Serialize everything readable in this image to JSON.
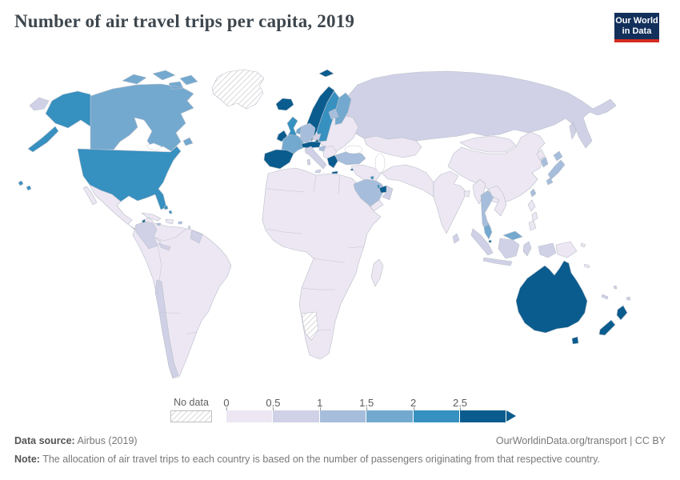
{
  "header": {
    "title": "Number of air travel trips per capita, 2019",
    "logo": {
      "line1": "Our World",
      "line2": "in Data",
      "navy": "#12305b",
      "red": "#d42b21"
    }
  },
  "legend": {
    "no_data_label": "No data",
    "ticks": [
      "0",
      "0.5",
      "1",
      "1.5",
      "2",
      "2.5"
    ]
  },
  "footer": {
    "source_label": "Data source:",
    "source_value": " Airbus (2019)",
    "link": "OurWorldinData.org/transport | CC BY",
    "note_label": "Note:",
    "note_value": " The allocation of air travel trips to each country is based on the number of passengers originating from that respective country."
  },
  "chart_data": {
    "type": "choropleth_map",
    "title": "Number of air travel trips per capita, 2019",
    "metric": "air travel trips per capita",
    "year": 2019,
    "legend_position": "bottom",
    "legend_bins": [
      {
        "range": "0-0.5",
        "color": "#ece7f2"
      },
      {
        "range": "0.5-1",
        "color": "#d0d1e6"
      },
      {
        "range": "1-1.5",
        "color": "#a6bddb"
      },
      {
        "range": "1.5-2",
        "color": "#74a9cf"
      },
      {
        "range": "2-2.5",
        "color": "#3690c0"
      },
      {
        "range": "2.5+",
        "color": "#0a5c8e"
      },
      {
        "range": "No data",
        "color": "hatch"
      }
    ],
    "countries": {
      "greenland": "No data",
      "namibia": "No data",
      "russia": "0.5-1",
      "russia-far-east": "0.5-1",
      "canada": "1.5-2",
      "united-states": "2-2.5",
      "mexico": "0-0.5",
      "belize": "2.5+",
      "guatemala-honduras-nicaragua": "0-0.5",
      "costa-rica-panama": "0.5-1",
      "cuba": "0-0.5",
      "bahamas": "2-2.5",
      "hispaniola": "0-0.5",
      "jamaica": "1-1.5",
      "puerto-rico": "1-1.5",
      "lesser-antilles": "0.5-1",
      "trinidad-and-tobago": "2-2.5",
      "south-america-mainland": "0-0.5",
      "colombia": "0.5-1",
      "guyana-suriname": "0.5-1",
      "chile": "0.5-1",
      "africa-mainland": "0-0.5",
      "madagascar": "0-0.5",
      "iceland": "2.5+",
      "norway": "2.5+",
      "svalbard": "2.5+",
      "sweden": "2-2.5",
      "finland": "1.5-2",
      "denmark": "2.5+",
      "united-kingdom": "2-2.5",
      "ireland": "2.5+",
      "spain-portugal": "2.5+",
      "france": "1.5-2",
      "benelux": "1.5-2",
      "germany": "1-1.5",
      "switzerland-austria": "2.5+",
      "italy": "0.5-1",
      "czechia": "0.5-1",
      "eastern-europe": "0-0.5",
      "baltics": "1-1.5",
      "balkans": "0-0.5",
      "croatia": "1-1.5",
      "greece": "2.5+",
      "turkey": "1-1.5",
      "cyprus": "2.5+",
      "iraq-syria": "0-0.5",
      "iran-pakistan-afghanistan": "0-0.5",
      "saudi-arabia": "1-1.5",
      "kuwait": "2-2.5",
      "qatar": "2-2.5",
      "united-arab-emirates": "2.5+",
      "oman": "0.5-1",
      "yemen": "0-0.5",
      "central-asia": "0-0.5",
      "mongolia": "0-0.5",
      "china": "0-0.5",
      "north-korea": "0-0.5",
      "south-korea": "1-1.5",
      "japan": "1-1.5",
      "taiwan": "1-1.5",
      "india": "0-0.5",
      "bangladesh": "0-0.5",
      "sri-lanka": "0.5-1",
      "myanmar": "0-0.5",
      "thailand": "1-1.5",
      "indochina": "0-0.5",
      "malaysia": "1.5-2",
      "singapore": "2.5+",
      "indonesia": "0.5-1",
      "philippines": "0-0.5",
      "papua-new-guinea": "0-0.5",
      "solomon-islands": "0-0.5",
      "vanuatu": "0.5-1",
      "new-caledonia": "0.5-1",
      "fiji": "0.5-1",
      "australia": "2.5+",
      "new-zealand": "2.5+"
    }
  }
}
